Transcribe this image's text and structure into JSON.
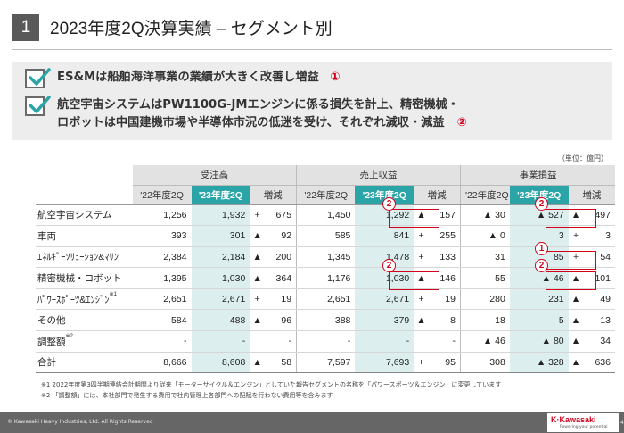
{
  "header": {
    "section_number": "1",
    "title": "2023年度2Q決算実績 – セグメント別"
  },
  "summary": {
    "bullet1": "ES&Mは船舶海洋事業の業績が大きく改善し増益",
    "bullet1_mark": "①",
    "bullet2_line1": "航空宇宙システムはPW1100G-JMエンジンに係る損失を計上、精密機械・",
    "bullet2_line2": "ロボットは中国建機市場や半導体市況の低迷を受け、それぞれ減収・減益",
    "bullet2_mark": "②"
  },
  "unit": "（単位：億円）",
  "table": {
    "groups": [
      "受注高",
      "売上収益",
      "事業損益"
    ],
    "subheaders": [
      "'22年度2Q",
      "'23年度2Q",
      "増減"
    ],
    "rows": [
      {
        "name": "航空宇宙システム",
        "sup": "",
        "v": [
          "1,256",
          "1,932",
          "+",
          "675",
          "1,450",
          "1,292",
          "▲",
          "157",
          "▲ 30",
          "▲ 527",
          "▲",
          "497"
        ]
      },
      {
        "name": "車両",
        "sup": "",
        "v": [
          "393",
          "301",
          "▲",
          "92",
          "585",
          "841",
          "+",
          "255",
          "▲ 0",
          "3",
          "+",
          "3"
        ]
      },
      {
        "name": "ｴﾈﾙｷﾞｰｿﾘｭｰｼｮﾝ&ﾏﾘﾝ",
        "sup": "",
        "v": [
          "2,384",
          "2,184",
          "▲",
          "200",
          "1,345",
          "1,478",
          "+",
          "133",
          "31",
          "85",
          "+",
          "54"
        ]
      },
      {
        "name": "精密機械・ロボット",
        "sup": "",
        "v": [
          "1,395",
          "1,030",
          "▲",
          "364",
          "1,176",
          "1,030",
          "▲",
          "146",
          "55",
          "▲ 46",
          "▲",
          "101"
        ]
      },
      {
        "name": "ﾊﾟﾜｰｽﾎﾟｰﾂ&ｴﾝｼﾞﾝ",
        "sup": "※1",
        "v": [
          "2,651",
          "2,671",
          "+",
          "19",
          "2,651",
          "2,671",
          "+",
          "19",
          "280",
          "231",
          "▲",
          "49"
        ]
      },
      {
        "name": "その他",
        "sup": "",
        "v": [
          "584",
          "488",
          "▲",
          "96",
          "388",
          "379",
          "▲",
          "8",
          "18",
          "5",
          "▲",
          "13"
        ]
      },
      {
        "name": "調整額",
        "sup": "※2",
        "v": [
          "-",
          "-",
          "",
          "-",
          "-",
          "-",
          "",
          "-",
          "▲ 46",
          "▲ 80",
          "▲",
          "34"
        ]
      }
    ],
    "total": {
      "name": "合計",
      "v": [
        "8,666",
        "8,608",
        "▲",
        "58",
        "7,597",
        "7,693",
        "+",
        "95",
        "308",
        "▲ 328",
        "▲",
        "636"
      ]
    }
  },
  "callouts": {
    "one": "1",
    "two": "2"
  },
  "notes": [
    "※1  2022年度第3四半期連結会計期間より従来「モーターサイクル＆エンジン」としていた報告セグメントの名称を「パワースポーツ＆エンジン」に変更しています",
    "※2 「調整額」には、本社部門で発生する費用で社内管理上各部門への配賦を行わない費用等を含みます"
  ],
  "footer": {
    "copyright": "© Kawasaki Heavy Industries, Ltd. All Rights Reserved",
    "logo": "Kawasaki",
    "tagline": "Powering your potential",
    "page": "4"
  },
  "colors": {
    "accent": "#2aa4a6",
    "highlight_cell": "#dceeee",
    "callout_red": "#d0021b"
  }
}
